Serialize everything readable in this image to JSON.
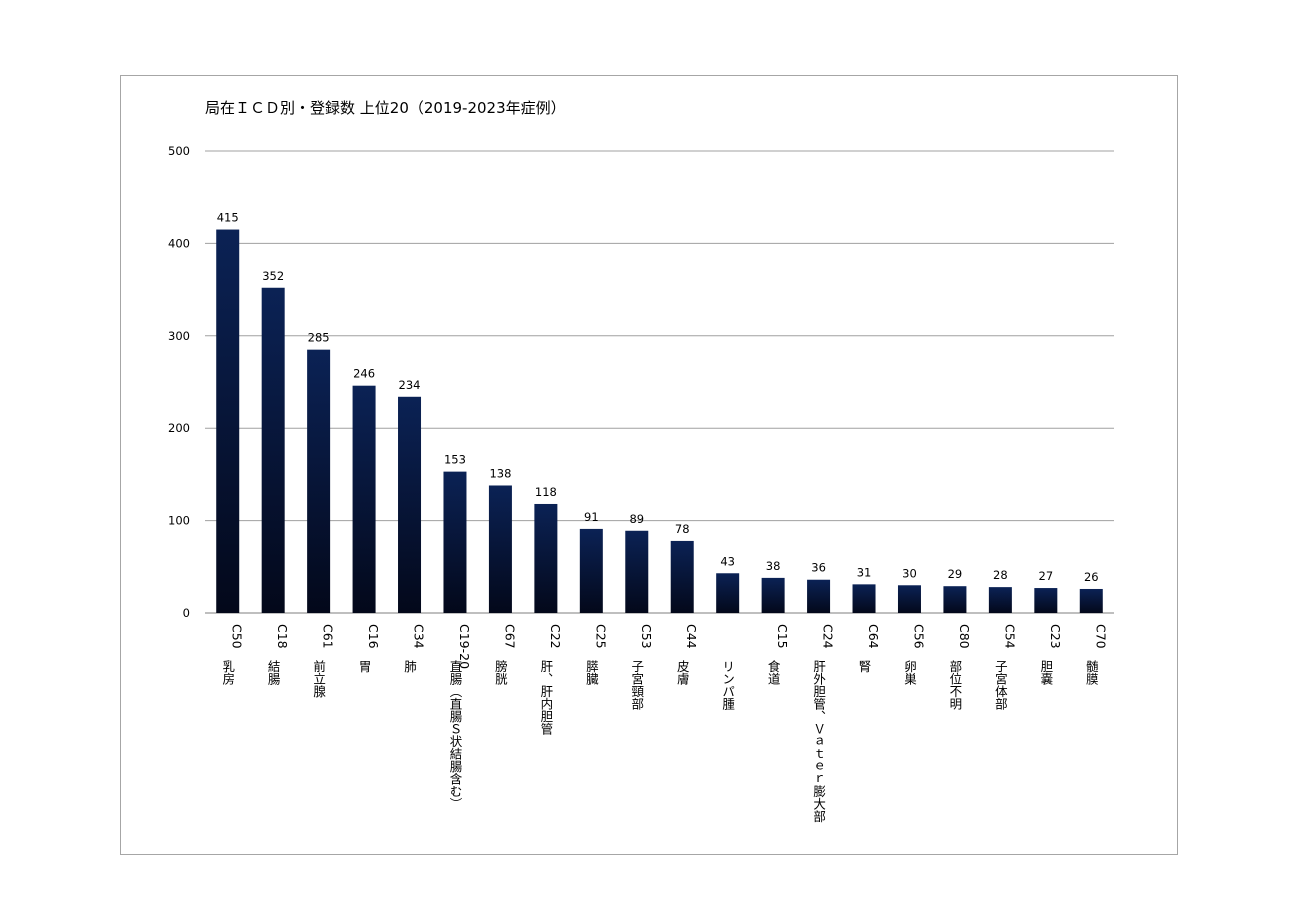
{
  "chart_data": {
    "type": "bar",
    "title": "局在ＩＣＤ別・登録数 上位20（2019-2023年症例）",
    "xlabel": "",
    "ylabel": "",
    "ylim": [
      0,
      500
    ],
    "yticks": [
      0,
      100,
      200,
      300,
      400,
      500
    ],
    "grid": true,
    "legend": "none",
    "categories": [
      {
        "code": "C50",
        "name": "乳房"
      },
      {
        "code": "C18",
        "name": "結腸"
      },
      {
        "code": "C61",
        "name": "前立腺"
      },
      {
        "code": "C16",
        "name": "胃"
      },
      {
        "code": "C34",
        "name": "肺"
      },
      {
        "code": "C19-20",
        "name": "直腸（直腸Ｓ状結腸含む）"
      },
      {
        "code": "C67",
        "name": "膀胱"
      },
      {
        "code": "C22",
        "name": "肝、肝内胆管"
      },
      {
        "code": "C25",
        "name": "膵臓"
      },
      {
        "code": "C53",
        "name": "子宮頸部"
      },
      {
        "code": "C44",
        "name": "皮膚"
      },
      {
        "code": "",
        "name": "リンパ腫"
      },
      {
        "code": "C15",
        "name": "食道"
      },
      {
        "code": "C24",
        "name": "肝外胆管、Ｖａｔｅｒ膨大部"
      },
      {
        "code": "C64",
        "name": "腎"
      },
      {
        "code": "C56",
        "name": "卵巣"
      },
      {
        "code": "C80",
        "name": "部位不明"
      },
      {
        "code": "C54",
        "name": "子宮体部"
      },
      {
        "code": "C23",
        "name": "胆嚢"
      },
      {
        "code": "C70",
        "name": "髄膜"
      }
    ],
    "values": [
      415,
      352,
      285,
      246,
      234,
      153,
      138,
      118,
      91,
      89,
      78,
      43,
      38,
      36,
      31,
      30,
      29,
      28,
      27,
      26
    ],
    "colors": {
      "bar_top": "#0b2255",
      "bar_bottom": "#03081a",
      "grid": "#a0a0a0",
      "frame": "#a6a6a6"
    }
  }
}
